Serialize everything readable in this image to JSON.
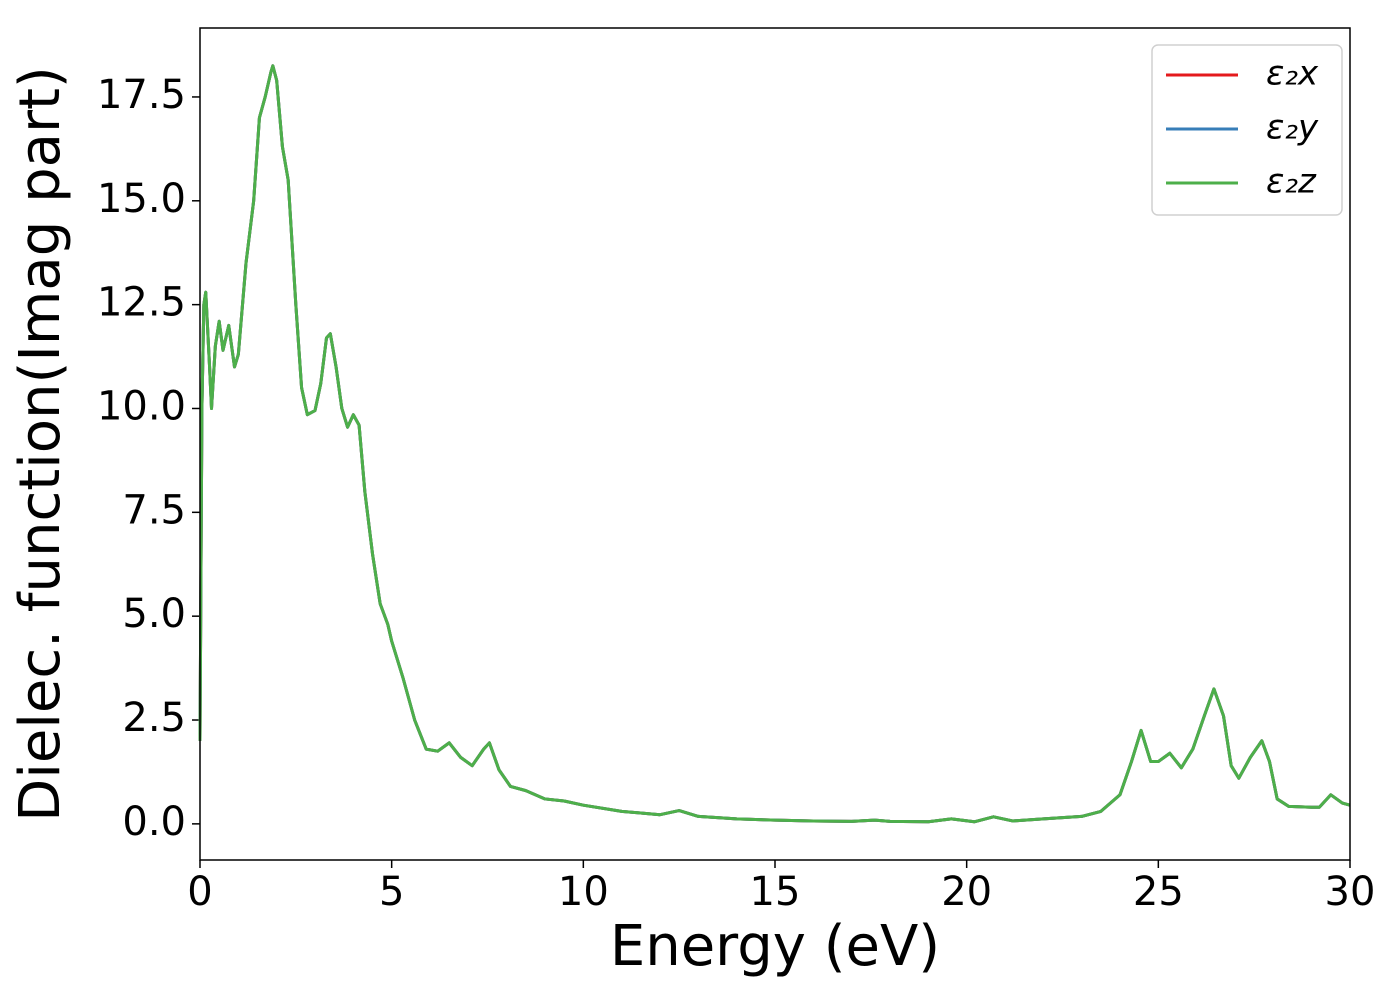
{
  "chart_data": {
    "type": "line",
    "xlabel": "Energy (eV)",
    "ylabel": "Dielec. function(Imag part)",
    "x": [
      0,
      0.05,
      0.1,
      0.15,
      0.25,
      0.3,
      0.4,
      0.5,
      0.6,
      0.75,
      0.9,
      1.0,
      1.2,
      1.4,
      1.55,
      1.7,
      1.85,
      1.9,
      2.0,
      2.15,
      2.3,
      2.5,
      2.65,
      2.8,
      3.0,
      3.15,
      3.3,
      3.4,
      3.55,
      3.7,
      3.85,
      4.0,
      4.15,
      4.3,
      4.5,
      4.7,
      4.9,
      5.0,
      5.3,
      5.6,
      5.9,
      6.2,
      6.5,
      6.8,
      7.1,
      7.4,
      7.55,
      7.8,
      8.1,
      8.5,
      9.0,
      9.5,
      10.0,
      11,
      12,
      12.5,
      13,
      14,
      15,
      16,
      17,
      17.6,
      18,
      19,
      19.6,
      20.2,
      20.7,
      21.2,
      22,
      23,
      23.5,
      24,
      24.3,
      24.55,
      24.8,
      25.0,
      25.3,
      25.6,
      25.9,
      26.2,
      26.45,
      26.7,
      26.9,
      27.1,
      27.4,
      27.7,
      27.9,
      28.1,
      28.4,
      29.0,
      29.2,
      29.5,
      29.8,
      30
    ],
    "series": [
      {
        "name": "ε₂x",
        "color": "#e41a1c",
        "values": [
          2.0,
          10,
          12.5,
          12.8,
          11,
          10.0,
          11.5,
          12.1,
          11.4,
          12.0,
          11.0,
          11.3,
          13.5,
          15.0,
          17.0,
          17.5,
          18.1,
          18.25,
          17.9,
          16.3,
          15.5,
          12.5,
          10.5,
          9.85,
          9.95,
          10.6,
          11.7,
          11.8,
          11.0,
          10.0,
          9.55,
          9.85,
          9.6,
          8.0,
          6.5,
          5.3,
          4.8,
          4.4,
          3.5,
          2.5,
          1.8,
          1.75,
          1.95,
          1.6,
          1.4,
          1.8,
          1.95,
          1.3,
          0.9,
          0.8,
          0.6,
          0.55,
          0.45,
          0.3,
          0.22,
          0.32,
          0.18,
          0.12,
          0.09,
          0.07,
          0.06,
          0.09,
          0.06,
          0.05,
          0.12,
          0.05,
          0.17,
          0.07,
          0.12,
          0.18,
          0.3,
          0.7,
          1.5,
          2.25,
          1.5,
          1.5,
          1.7,
          1.35,
          1.8,
          2.6,
          3.25,
          2.6,
          1.4,
          1.1,
          1.6,
          2.0,
          1.5,
          0.6,
          0.42,
          0.4,
          0.4,
          0.7,
          0.5,
          0.45
        ]
      },
      {
        "name": "ε₂y",
        "color": "#377eb8",
        "values": [
          2.0,
          10,
          12.5,
          12.8,
          11,
          10.0,
          11.5,
          12.1,
          11.4,
          12.0,
          11.0,
          11.3,
          13.5,
          15.0,
          17.0,
          17.5,
          18.1,
          18.25,
          17.9,
          16.3,
          15.5,
          12.5,
          10.5,
          9.85,
          9.95,
          10.6,
          11.7,
          11.8,
          11.0,
          10.0,
          9.55,
          9.85,
          9.6,
          8.0,
          6.5,
          5.3,
          4.8,
          4.4,
          3.5,
          2.5,
          1.8,
          1.75,
          1.95,
          1.6,
          1.4,
          1.8,
          1.95,
          1.3,
          0.9,
          0.8,
          0.6,
          0.55,
          0.45,
          0.3,
          0.22,
          0.32,
          0.18,
          0.12,
          0.09,
          0.07,
          0.06,
          0.09,
          0.06,
          0.05,
          0.12,
          0.05,
          0.17,
          0.07,
          0.12,
          0.18,
          0.3,
          0.7,
          1.5,
          2.25,
          1.5,
          1.5,
          1.7,
          1.35,
          1.8,
          2.6,
          3.25,
          2.6,
          1.4,
          1.1,
          1.6,
          2.0,
          1.5,
          0.6,
          0.42,
          0.4,
          0.4,
          0.7,
          0.5,
          0.45
        ]
      },
      {
        "name": "ε₂z",
        "color": "#4daf4a",
        "values": [
          2.0,
          10,
          12.5,
          12.8,
          11,
          10.0,
          11.5,
          12.1,
          11.4,
          12.0,
          11.0,
          11.3,
          13.5,
          15.0,
          17.0,
          17.5,
          18.1,
          18.25,
          17.9,
          16.3,
          15.5,
          12.5,
          10.5,
          9.85,
          9.95,
          10.6,
          11.7,
          11.8,
          11.0,
          10.0,
          9.55,
          9.85,
          9.6,
          8.0,
          6.5,
          5.3,
          4.8,
          4.4,
          3.5,
          2.5,
          1.8,
          1.75,
          1.95,
          1.6,
          1.4,
          1.8,
          1.95,
          1.3,
          0.9,
          0.8,
          0.6,
          0.55,
          0.45,
          0.3,
          0.22,
          0.32,
          0.18,
          0.12,
          0.09,
          0.07,
          0.06,
          0.09,
          0.06,
          0.05,
          0.12,
          0.05,
          0.17,
          0.07,
          0.12,
          0.18,
          0.3,
          0.7,
          1.5,
          2.25,
          1.5,
          1.5,
          1.7,
          1.35,
          1.8,
          2.6,
          3.25,
          2.6,
          1.4,
          1.1,
          1.6,
          2.0,
          1.5,
          0.6,
          0.42,
          0.4,
          0.4,
          0.7,
          0.5,
          0.45
        ]
      }
    ],
    "xlim": [
      0,
      30
    ],
    "xticks": [
      0,
      5,
      10,
      15,
      20,
      25,
      30
    ],
    "ylim": [
      -0.87,
      19.16
    ],
    "yticks": [
      {
        "value": 0,
        "label": "0.0"
      },
      2.5,
      {
        "value": 5,
        "label": "5.0"
      },
      7.5,
      {
        "value": 10,
        "label": "10.0"
      },
      12.5,
      {
        "value": 15,
        "label": "15.0"
      },
      17.5
    ],
    "legend": "upper right",
    "grid": false
  }
}
